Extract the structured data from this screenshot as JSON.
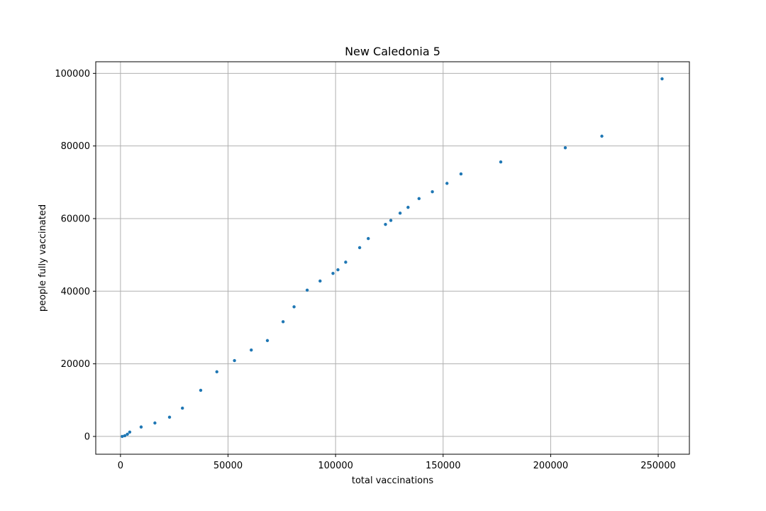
{
  "chart_data": {
    "type": "scatter",
    "title": "New Caledonia 5",
    "xlabel": "total vaccinations",
    "ylabel": "people fully vaccinated",
    "xlim": [
      -11500,
      264500
    ],
    "ylim": [
      -4900,
      103200
    ],
    "xticks": [
      0,
      50000,
      100000,
      150000,
      200000,
      250000
    ],
    "yticks": [
      0,
      20000,
      40000,
      60000,
      80000,
      100000
    ],
    "grid": true,
    "marker_color": "#1f77b4",
    "series": [
      {
        "points": [
          [
            800,
            0
          ],
          [
            2000,
            200
          ],
          [
            3200,
            600
          ],
          [
            4300,
            1200
          ],
          [
            9600,
            2600
          ],
          [
            16000,
            3700
          ],
          [
            22800,
            5300
          ],
          [
            28800,
            7800
          ],
          [
            37300,
            12700
          ],
          [
            44800,
            17800
          ],
          [
            53000,
            20900
          ],
          [
            60800,
            23800
          ],
          [
            68300,
            26400
          ],
          [
            75600,
            31600
          ],
          [
            80700,
            35700
          ],
          [
            86800,
            40300
          ],
          [
            92800,
            42800
          ],
          [
            98800,
            44900
          ],
          [
            101100,
            45900
          ],
          [
            104700,
            48000
          ],
          [
            111200,
            52000
          ],
          [
            115200,
            54500
          ],
          [
            123200,
            58400
          ],
          [
            125700,
            59500
          ],
          [
            130000,
            61500
          ],
          [
            133700,
            63100
          ],
          [
            138800,
            65500
          ],
          [
            145000,
            67400
          ],
          [
            151800,
            69700
          ],
          [
            158300,
            72300
          ],
          [
            176800,
            75600
          ],
          [
            206800,
            79500
          ],
          [
            223800,
            82700
          ],
          [
            251800,
            98500
          ]
        ]
      }
    ]
  }
}
